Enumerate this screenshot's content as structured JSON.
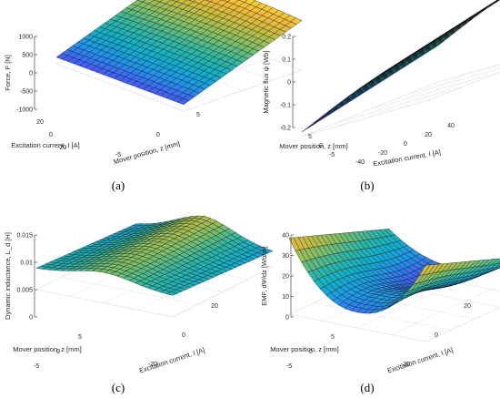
{
  "chart_data": [
    {
      "type": "surface",
      "id": "a",
      "caption": "(a)",
      "title": "",
      "zlabel": "Force, F [N]",
      "xlabel": "Excitation current, I [A]",
      "ylabel": "Mover position, z [mm]",
      "zticks": [
        "1000",
        "500",
        "0",
        "-500",
        "-1000"
      ],
      "xticks": [
        "20",
        "0",
        "-20"
      ],
      "yticks": [
        "-5",
        "0",
        "5"
      ],
      "zlim": [
        -1100,
        1100
      ],
      "note": "Force rises roughly linearly with excitation current; near-linear plane with slight position dependence"
    },
    {
      "type": "surface",
      "id": "b",
      "caption": "(b)",
      "title": "",
      "zlabel": "Magnetic flux ψ [Wb]",
      "xlabel": "Excitation current, I [A]",
      "ylabel": "Mover position, z [mm]",
      "zticks": [
        "0.2",
        "0.1",
        "0",
        "-0.1",
        "-0.2"
      ],
      "xticks": [
        "-40",
        "-20",
        "0",
        "20",
        "40"
      ],
      "yticks": [
        "-5",
        "0",
        "5"
      ],
      "zlim": [
        -0.25,
        0.25
      ],
      "note": "Flux increases with current and with mover position"
    },
    {
      "type": "surface",
      "id": "c",
      "caption": "(c)",
      "title": "",
      "zlabel": "Dynamic inductance, L_d [H]",
      "xlabel": "Excitation current, I [A]",
      "ylabel": "Mover position, z [mm]",
      "zticks": [
        "0.015",
        "0.01",
        "0.005",
        "0"
      ],
      "xticks": [
        "-20",
        "0",
        "20"
      ],
      "yticks": [
        "-5",
        "0",
        "5"
      ],
      "zlim": [
        0,
        0.015
      ],
      "note": "Inductance peaks near zero current (~0.011 H) and decreases toward large |I|"
    },
    {
      "type": "surface",
      "id": "d",
      "caption": "(d)",
      "title": "",
      "zlabel": "EMF, dΨ/dz [Wb/m]",
      "xlabel": "Excitation current, I [A]",
      "ylabel": "Mover position, z [mm]",
      "zticks": [
        "40",
        "30",
        "20",
        "10",
        "0"
      ],
      "xticks": [
        "-20",
        "0",
        "20"
      ],
      "yticks": [
        "-5",
        "0",
        "5"
      ],
      "zlim": [
        0,
        40
      ],
      "note": "EMF peaks at large |I| near ~37 Wb/m and dips to ~10 Wb/m near zero current"
    }
  ],
  "colormap": [
    "#3e26a8",
    "#4659f8",
    "#1f96e8",
    "#11b0c8",
    "#33b7a0",
    "#7bbf6a",
    "#bfbc42",
    "#f5ba3a",
    "#f9e127"
  ]
}
